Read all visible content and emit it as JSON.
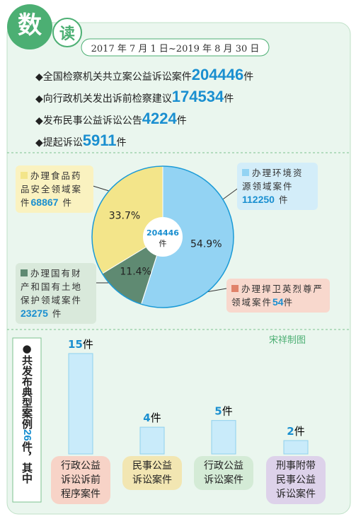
{
  "header": {
    "badge_main": "数",
    "badge_sub": "读",
    "date_range": "2017 年 7 月 1 日~2019 年 8 月 30 日"
  },
  "stats": [
    {
      "label": "全国检察机关共立案公益诉讼案件",
      "value": 204446,
      "unit": "件"
    },
    {
      "label": "向行政机关发出诉前检察建议",
      "value": 174534,
      "unit": "件"
    },
    {
      "label": "发布民事公益诉讼公告",
      "value": 4224,
      "unit": "件"
    },
    {
      "label": "提起诉讼",
      "value": 5911,
      "unit": "件"
    }
  ],
  "chart_data": [
    {
      "type": "pie",
      "total": 204446,
      "total_unit": "件",
      "unit": "件",
      "categories": [
        "办理环境资源领域案件",
        "办理捍卫英烈尊严领域案件",
        "办理国有财产和国有土地保护领域案件",
        "办理食品药品安全领域案件"
      ],
      "values": [
        112250,
        54,
        23275,
        68867
      ],
      "percent_labels": [
        "54.9%",
        null,
        "11.4%",
        "33.7%"
      ],
      "colors": [
        "#93d3f3",
        "#e0826a",
        "#5f8a72",
        "#f3e58a"
      ]
    },
    {
      "type": "bar",
      "unit": "件",
      "color": "#c9ebfa",
      "categories": [
        "行政公益诉讼诉前程序案件",
        "民事公益诉讼案件",
        "行政公益诉讼案件",
        "刑事附带民事公益诉讼案件"
      ],
      "values": [
        15,
        4,
        5,
        2
      ],
      "box_colors": [
        "#f7d3c7",
        "#f2e6b2",
        "#d4ebd6",
        "#ddd2ea"
      ]
    }
  ],
  "side_note": {
    "prefix": "共发布典型案例",
    "value": 26,
    "suffix": "件，其中"
  },
  "credit": "宋祥制图"
}
